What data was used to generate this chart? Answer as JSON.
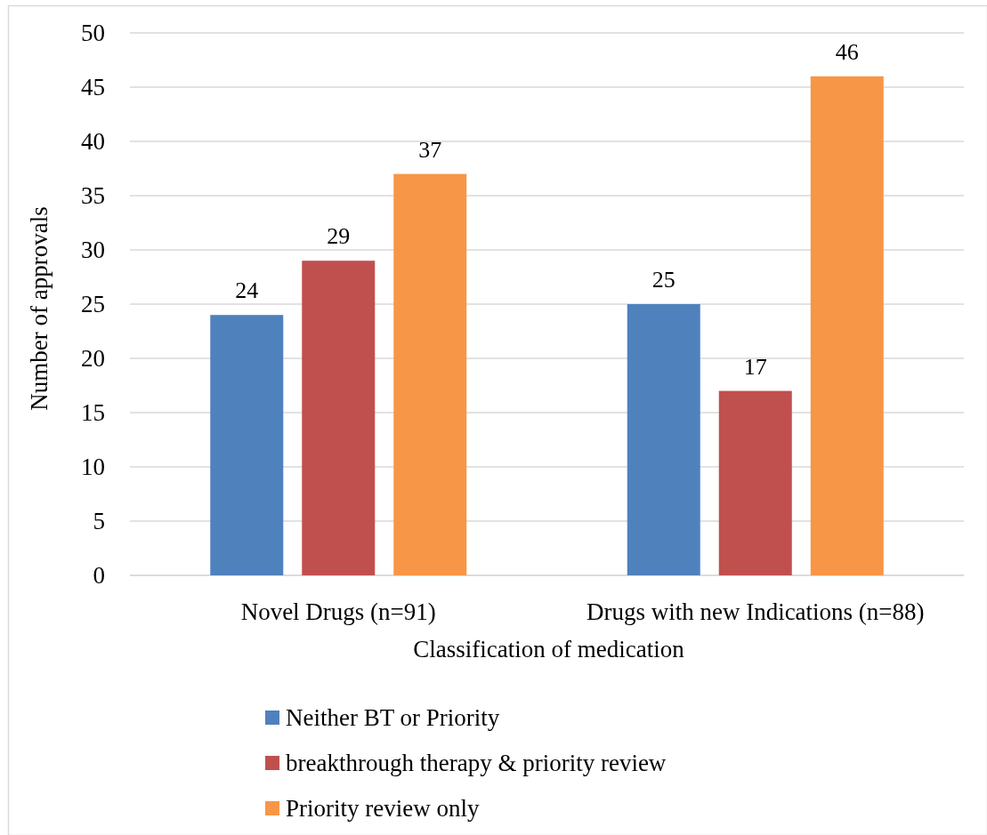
{
  "chart_data": {
    "type": "bar",
    "xlabel": "Classification of medication",
    "ylabel": "Number of approvals",
    "categories": [
      "Novel Drugs (n=91)",
      "Drugs with new Indications (n=88)"
    ],
    "series": [
      {
        "name": "Neither BT or Priority",
        "color": "#4f81bd",
        "values": [
          24,
          25
        ]
      },
      {
        "name": "breakthrough therapy & priority review",
        "color": "#c0504d",
        "values": [
          29,
          17
        ]
      },
      {
        "name": "Priority review only",
        "color": "#f79646",
        "values": [
          37,
          46
        ]
      }
    ],
    "ylim": [
      0,
      50
    ],
    "yticks": [
      0,
      5,
      10,
      15,
      20,
      25,
      30,
      35,
      40,
      45,
      50
    ],
    "grid": "y",
    "legend": "bottom",
    "data_labels": true
  }
}
